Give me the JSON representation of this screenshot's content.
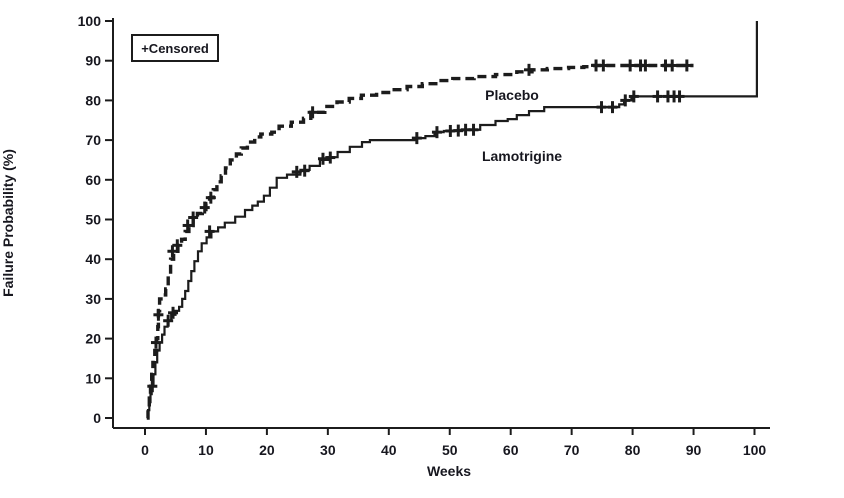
{
  "figure": {
    "background": "#ffffff",
    "line_color": "#1c1c1c",
    "text_color": "#17171f"
  },
  "legend": {
    "label": "+Censored"
  },
  "series_labels": {
    "placebo": "Placebo",
    "lamotrigine": "Lamotrigine"
  },
  "axes": {
    "x_title": "Weeks",
    "y_title": "Failure Probability (%)"
  },
  "chart_data": {
    "type": "line",
    "subtype": "kaplan-meier-failure-step",
    "title": "",
    "xlabel": "Weeks",
    "ylabel": "Failure Probability (%)",
    "xlim": [
      0,
      100
    ],
    "ylim": [
      0,
      100
    ],
    "x_ticks": [
      0,
      10,
      20,
      30,
      40,
      50,
      60,
      70,
      80,
      90,
      100
    ],
    "y_ticks": [
      0,
      10,
      20,
      30,
      40,
      50,
      60,
      70,
      80,
      90,
      100
    ],
    "grid": false,
    "legend_note": "+Censored",
    "series": [
      {
        "name": "Placebo",
        "style": "dashed",
        "points": [
          [
            0.3,
            0
          ],
          [
            0.5,
            2
          ],
          [
            0.7,
            5
          ],
          [
            0.9,
            8
          ],
          [
            1.1,
            11
          ],
          [
            1.3,
            14
          ],
          [
            1.6,
            17
          ],
          [
            1.9,
            20
          ],
          [
            2.1,
            23
          ],
          [
            2.2,
            27
          ],
          [
            2.4,
            30
          ],
          [
            3.0,
            31
          ],
          [
            3.4,
            32.5
          ],
          [
            3.8,
            36
          ],
          [
            4.2,
            40
          ],
          [
            4.7,
            42
          ],
          [
            5.4,
            43.5
          ],
          [
            6.0,
            45
          ],
          [
            6.6,
            47
          ],
          [
            7.2,
            48.5
          ],
          [
            7.9,
            50.5
          ],
          [
            8.6,
            51.5
          ],
          [
            9.4,
            52.5
          ],
          [
            10.0,
            54
          ],
          [
            10.6,
            55.5
          ],
          [
            11.2,
            57.5
          ],
          [
            11.8,
            59.5
          ],
          [
            12.5,
            61
          ],
          [
            13.2,
            63
          ],
          [
            14.0,
            65
          ],
          [
            15.0,
            66.5
          ],
          [
            15.8,
            68
          ],
          [
            16.8,
            69.5
          ],
          [
            18.0,
            70.8
          ],
          [
            19.0,
            71.5
          ],
          [
            20.8,
            72
          ],
          [
            22.0,
            73.5
          ],
          [
            24.0,
            74.5
          ],
          [
            26.0,
            75.5
          ],
          [
            27.2,
            77
          ],
          [
            29.5,
            78.5
          ],
          [
            31.5,
            79.6
          ],
          [
            33.5,
            80.5
          ],
          [
            35.5,
            81.3
          ],
          [
            38.0,
            82
          ],
          [
            40.5,
            82.7
          ],
          [
            43.0,
            83.5
          ],
          [
            45.5,
            84.2
          ],
          [
            48.0,
            85
          ],
          [
            50.5,
            85.5
          ],
          [
            54.0,
            86
          ],
          [
            57.5,
            86.5
          ],
          [
            61.0,
            87.2
          ],
          [
            63.5,
            87.7
          ],
          [
            66.0,
            88
          ],
          [
            69.5,
            88.3
          ],
          [
            72.0,
            88.5
          ],
          [
            73.5,
            88.8
          ],
          [
            90.0,
            88.8
          ]
        ],
        "censored": [
          [
            1.2,
            8
          ],
          [
            1.8,
            19
          ],
          [
            2.2,
            26
          ],
          [
            4.5,
            42
          ],
          [
            5.3,
            43.5
          ],
          [
            7.0,
            48.5
          ],
          [
            7.9,
            50.5
          ],
          [
            9.8,
            53
          ],
          [
            10.8,
            55.5
          ],
          [
            27.5,
            77
          ],
          [
            63.0,
            87.7
          ],
          [
            74.0,
            88.8
          ],
          [
            75.2,
            88.8
          ],
          [
            79.6,
            88.8
          ],
          [
            81.3,
            88.8
          ],
          [
            82.1,
            88.8
          ],
          [
            85.4,
            88.8
          ],
          [
            86.5,
            88.8
          ],
          [
            88.9,
            88.8
          ]
        ]
      },
      {
        "name": "Lamotrigine",
        "style": "solid",
        "points": [
          [
            0.3,
            0
          ],
          [
            0.5,
            2
          ],
          [
            0.7,
            4
          ],
          [
            0.9,
            6
          ],
          [
            1.1,
            8
          ],
          [
            1.4,
            11
          ],
          [
            1.7,
            14
          ],
          [
            2.0,
            17
          ],
          [
            2.4,
            19
          ],
          [
            2.8,
            21
          ],
          [
            3.2,
            23
          ],
          [
            3.7,
            24.5
          ],
          [
            4.3,
            26
          ],
          [
            5.0,
            27
          ],
          [
            5.6,
            28
          ],
          [
            6.1,
            30
          ],
          [
            6.6,
            32
          ],
          [
            7.1,
            34.5
          ],
          [
            7.6,
            37
          ],
          [
            8.1,
            39.5
          ],
          [
            8.7,
            42
          ],
          [
            9.3,
            44
          ],
          [
            10.1,
            45.5
          ],
          [
            10.9,
            47
          ],
          [
            12.0,
            48
          ],
          [
            13.1,
            49.2
          ],
          [
            14.8,
            50.7
          ],
          [
            16.4,
            52.4
          ],
          [
            17.6,
            53.5
          ],
          [
            18.5,
            54.5
          ],
          [
            19.5,
            56
          ],
          [
            20.5,
            58
          ],
          [
            21.6,
            60.5
          ],
          [
            23.3,
            61.3
          ],
          [
            25.5,
            62.5
          ],
          [
            27.0,
            63.5
          ],
          [
            28.7,
            65
          ],
          [
            30.0,
            65.7
          ],
          [
            31.6,
            67
          ],
          [
            33.6,
            68.3
          ],
          [
            35.6,
            69.5
          ],
          [
            36.9,
            70
          ],
          [
            44.5,
            70.5
          ],
          [
            46.0,
            71
          ],
          [
            47.5,
            72
          ],
          [
            49.0,
            72.3
          ],
          [
            52.0,
            72.6
          ],
          [
            55.0,
            73.8
          ],
          [
            57.5,
            74.8
          ],
          [
            59.5,
            75.3
          ],
          [
            61.0,
            76.3
          ],
          [
            63.0,
            77.3
          ],
          [
            65.5,
            78.3
          ],
          [
            77.8,
            79
          ],
          [
            78.6,
            80
          ],
          [
            79.8,
            81
          ],
          [
            100.4,
            81
          ],
          [
            100.4,
            100
          ]
        ],
        "censored": [
          [
            3.8,
            24.5
          ],
          [
            4.6,
            26.5
          ],
          [
            10.6,
            47
          ],
          [
            24.9,
            62
          ],
          [
            26.2,
            62.3
          ],
          [
            29.2,
            65.3
          ],
          [
            30.4,
            65.6
          ],
          [
            44.6,
            70.5
          ],
          [
            47.9,
            72
          ],
          [
            50.1,
            72.3
          ],
          [
            51.4,
            72.4
          ],
          [
            52.6,
            72.6
          ],
          [
            53.9,
            72.6
          ],
          [
            74.9,
            78.3
          ],
          [
            76.7,
            78.3
          ],
          [
            78.8,
            80
          ],
          [
            80.2,
            81
          ],
          [
            84.1,
            81
          ],
          [
            85.8,
            81
          ],
          [
            86.8,
            81
          ],
          [
            87.7,
            81
          ]
        ]
      }
    ]
  }
}
